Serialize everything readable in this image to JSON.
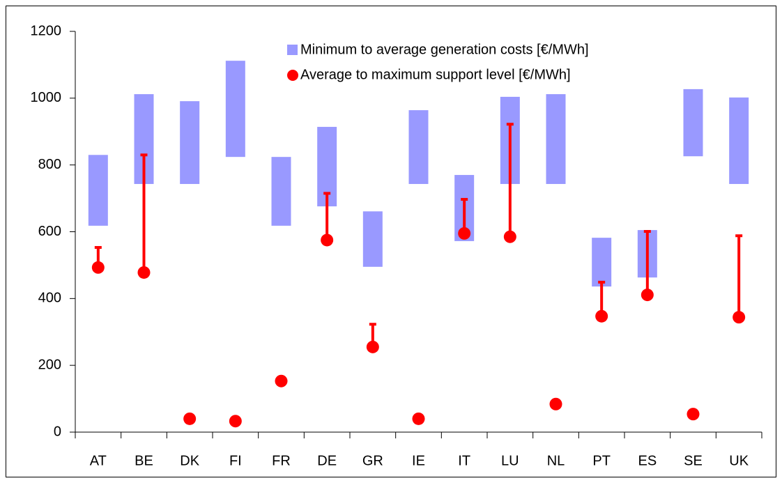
{
  "chart_data": {
    "type": "range-bar-dot",
    "categories": [
      "AT",
      "BE",
      "DK",
      "FI",
      "FR",
      "DE",
      "GR",
      "IE",
      "IT",
      "LU",
      "NL",
      "PT",
      "ES",
      "SE",
      "UK"
    ],
    "series": [
      {
        "name": "Minimum to average generation costs [€/MWh]",
        "color": "#9999ff",
        "low": [
          618,
          743,
          743,
          824,
          618,
          676,
          495,
          743,
          572,
          743,
          743,
          436,
          463,
          826,
          743
        ],
        "high": [
          830,
          1012,
          991,
          1112,
          824,
          914,
          661,
          964,
          770,
          1004,
          1012,
          582,
          605,
          1027,
          1002
        ]
      },
      {
        "name": "Average to maximum support level [€/MWh]",
        "color": "#ff0000",
        "values": [
          493,
          478,
          40,
          33,
          153,
          575,
          255,
          40,
          595,
          585,
          84,
          347,
          411,
          54,
          344
        ],
        "max": [
          553,
          830,
          null,
          null,
          null,
          715,
          323,
          null,
          697,
          922,
          null,
          449,
          601,
          null,
          588
        ]
      }
    ],
    "ylim": [
      0,
      1200
    ],
    "yticks": [
      0,
      200,
      400,
      600,
      800,
      1000,
      1200
    ],
    "grid": false
  }
}
